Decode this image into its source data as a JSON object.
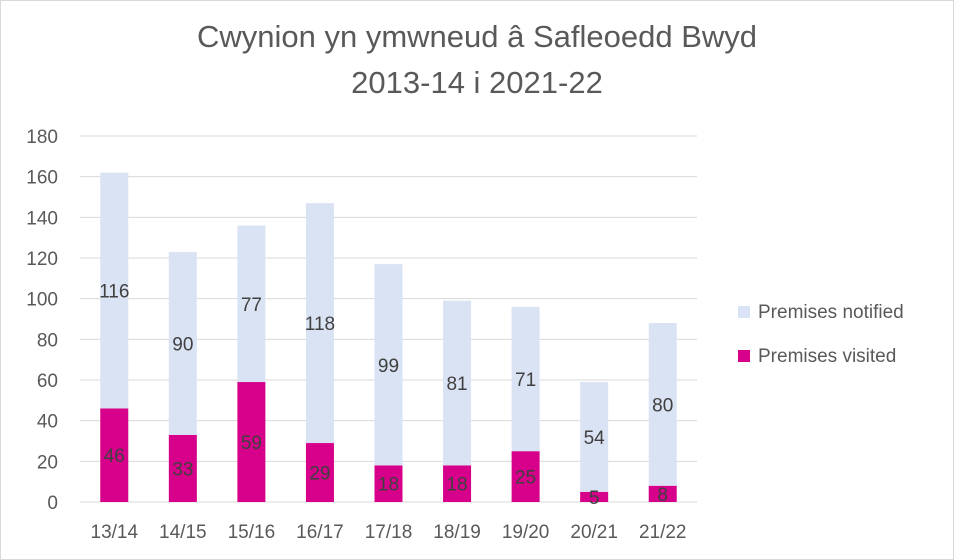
{
  "chart_data": {
    "type": "bar",
    "stacked": true,
    "title": "Cwynion yn ymwneud â Safleoedd Bwyd",
    "subtitle": "2013-14 i 2021-22",
    "xlabel": "",
    "ylabel": "",
    "ylim": [
      0,
      180
    ],
    "yticks": [
      "0",
      "20",
      "40",
      "60",
      "80",
      "100",
      "120",
      "140",
      "160",
      "180"
    ],
    "categories": [
      "13/14",
      "14/15",
      "15/16",
      "16/17",
      "17/18",
      "18/19",
      "19/20",
      "20/21",
      "21/22"
    ],
    "series": [
      {
        "name": "Premises visited",
        "color": "#d6008a",
        "values": [
          46,
          33,
          59,
          29,
          18,
          18,
          25,
          5,
          8
        ]
      },
      {
        "name": "Premises notified",
        "color": "#dae3f3",
        "values": [
          116,
          90,
          77,
          118,
          99,
          81,
          71,
          54,
          80
        ]
      }
    ],
    "grid": true,
    "legend_position": "right"
  }
}
